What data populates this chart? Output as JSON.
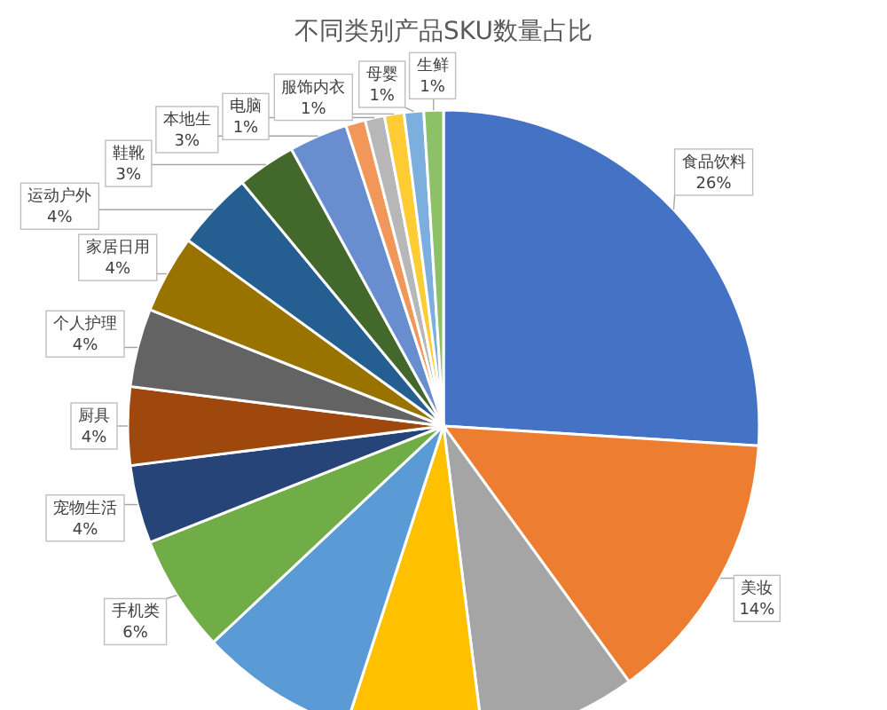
{
  "chart_data": {
    "type": "pie",
    "title": "不同类别产品SKU数量占比",
    "categories": [
      "食品饮料",
      "美妆",
      null,
      null,
      null,
      "手机类",
      "宠物生活",
      "厨具",
      "个人护理",
      "家居日用",
      "运动户外",
      "鞋靴",
      "本地生",
      null,
      "电脑",
      "服饰内衣",
      "母婴",
      "生鲜"
    ],
    "values": [
      26,
      14,
      8,
      7,
      8,
      6,
      4,
      4,
      4,
      4,
      4,
      3,
      3,
      1,
      1,
      1,
      1,
      1
    ],
    "value_labels": [
      "26%",
      "14%",
      null,
      null,
      null,
      "6%",
      "4%",
      "4%",
      "4%",
      "4%",
      "4%",
      "3%",
      "3%",
      null,
      "1%",
      "1%",
      "1%",
      "1%"
    ],
    "colors": [
      "#4472c4",
      "#ed7d31",
      "#a5a5a5",
      "#ffc000",
      "#5b9bd5",
      "#70ad47",
      "#264478",
      "#9e480e",
      "#636363",
      "#997300",
      "#255e91",
      "#43682b",
      "#698ed0",
      "#f1975a",
      "#b7b7b7",
      "#ffcd33",
      "#7cafdd",
      "#8cc168"
    ]
  }
}
